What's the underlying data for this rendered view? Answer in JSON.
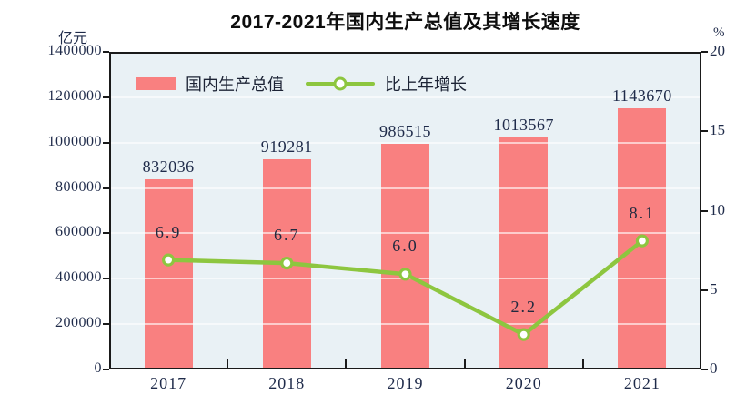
{
  "title": "2017-2021年国内生产总值及其增长速度",
  "legend": {
    "bar_label": "国内生产总值",
    "line_label": "比上年增长"
  },
  "colors": {
    "bar": "#f98080",
    "line": "#8dc63f",
    "plot_bg": "#e9f1f5",
    "grid": "rgba(255,255,255,0.6)",
    "axis": "#1a1a1a",
    "text": "#1f2b4a"
  },
  "chart_data": {
    "type": "bar+line",
    "title": "2017-2021年国内生产总值及其增长速度",
    "categories": [
      "2017",
      "2018",
      "2019",
      "2020",
      "2021"
    ],
    "series": [
      {
        "name": "国内生产总值",
        "type": "bar",
        "axis": "left",
        "unit": "亿元",
        "values": [
          832036,
          919281,
          986515,
          1013567,
          1143670
        ]
      },
      {
        "name": "比上年增长",
        "type": "line",
        "axis": "right",
        "unit": "%",
        "values": [
          6.9,
          6.7,
          6.0,
          2.2,
          8.1
        ]
      }
    ],
    "left_axis": {
      "label": "亿元",
      "min": 0,
      "max": 1400000,
      "step": 200000,
      "ticks": [
        "0",
        "200000",
        "400000",
        "600000",
        "800000",
        "1000000",
        "1200000",
        "1400000"
      ]
    },
    "right_axis": {
      "label": "%",
      "min": 0,
      "max": 20,
      "step": 5,
      "ticks": [
        "0",
        "5",
        "10",
        "15",
        "20"
      ]
    },
    "grid": true,
    "legend_position": "top-left-inside"
  }
}
